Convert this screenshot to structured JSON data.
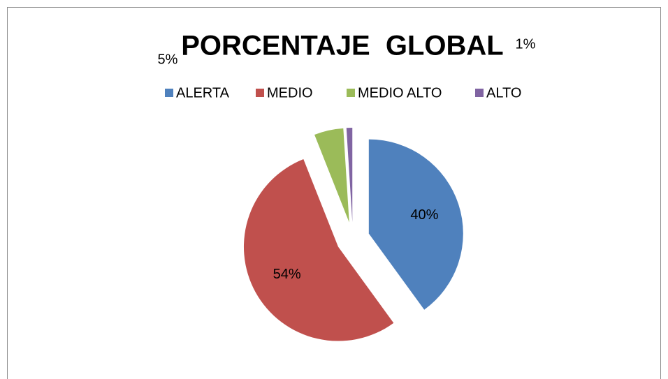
{
  "chart_data": {
    "type": "pie",
    "title": "PORCENTAJE  GLOBAL",
    "categories": [
      "ALERTA",
      "MEDIO",
      "MEDIO ALTO",
      "ALTO"
    ],
    "values": [
      40,
      54,
      5,
      1
    ],
    "value_labels": [
      "40%",
      "54%",
      "5%",
      "1%"
    ],
    "colors": [
      "#4f81bd",
      "#c0504d",
      "#9bbb59",
      "#8064a2"
    ],
    "legend": "top",
    "exploded": true
  }
}
